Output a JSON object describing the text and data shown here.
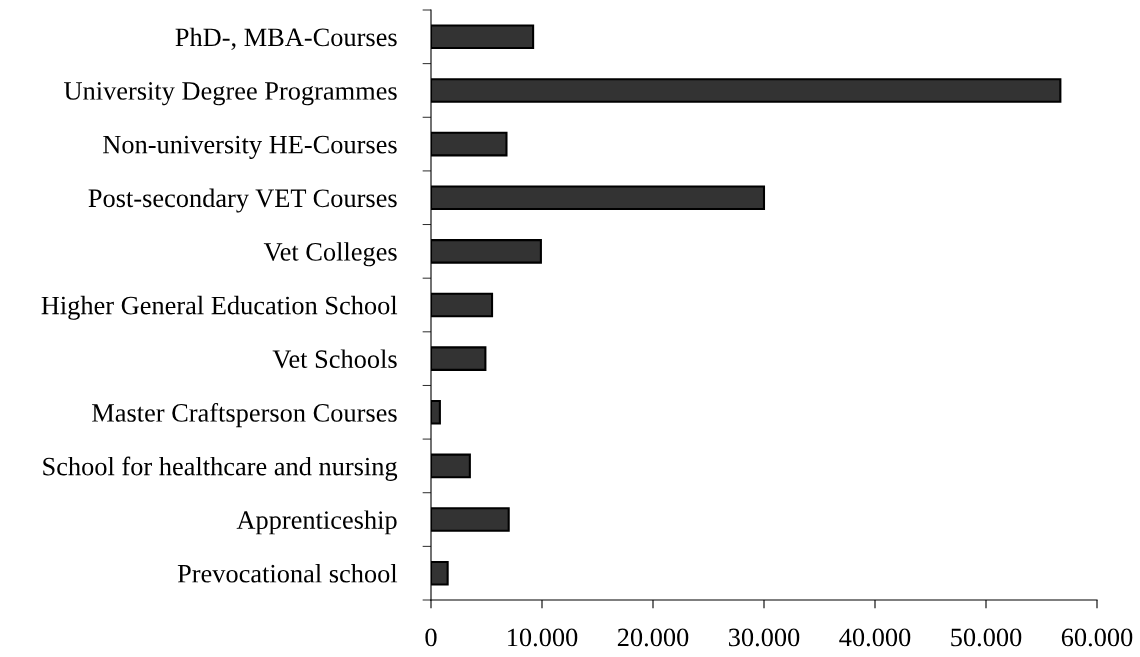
{
  "chart_data": {
    "type": "bar",
    "orientation": "horizontal",
    "categories": [
      "PhD-, MBA-Courses",
      "University Degree Programmes",
      "Non-university HE-Courses",
      "Post-secondary VET Courses",
      "Vet Colleges",
      "Higher General Education School",
      "Vet Schools",
      "Master Craftsperson Courses",
      "School for healthcare and nursing",
      "Apprenticeship",
      "Prevocational school"
    ],
    "values": [
      9200,
      56700,
      6800,
      30000,
      9900,
      5500,
      4900,
      800,
      3500,
      7000,
      1500
    ],
    "color": "#333333",
    "xlim": [
      0,
      60000
    ],
    "xticks": [
      0,
      {
        "value": 10000,
        "label": "10.000"
      },
      {
        "value": 20000,
        "label": "20.000"
      },
      {
        "value": 30000,
        "label": "30.000"
      },
      {
        "value": 40000,
        "label": "40.000"
      },
      {
        "value": 50000,
        "label": "50.000"
      },
      {
        "value": 60000,
        "label": "60.000"
      }
    ],
    "grid": false,
    "legend": false
  }
}
